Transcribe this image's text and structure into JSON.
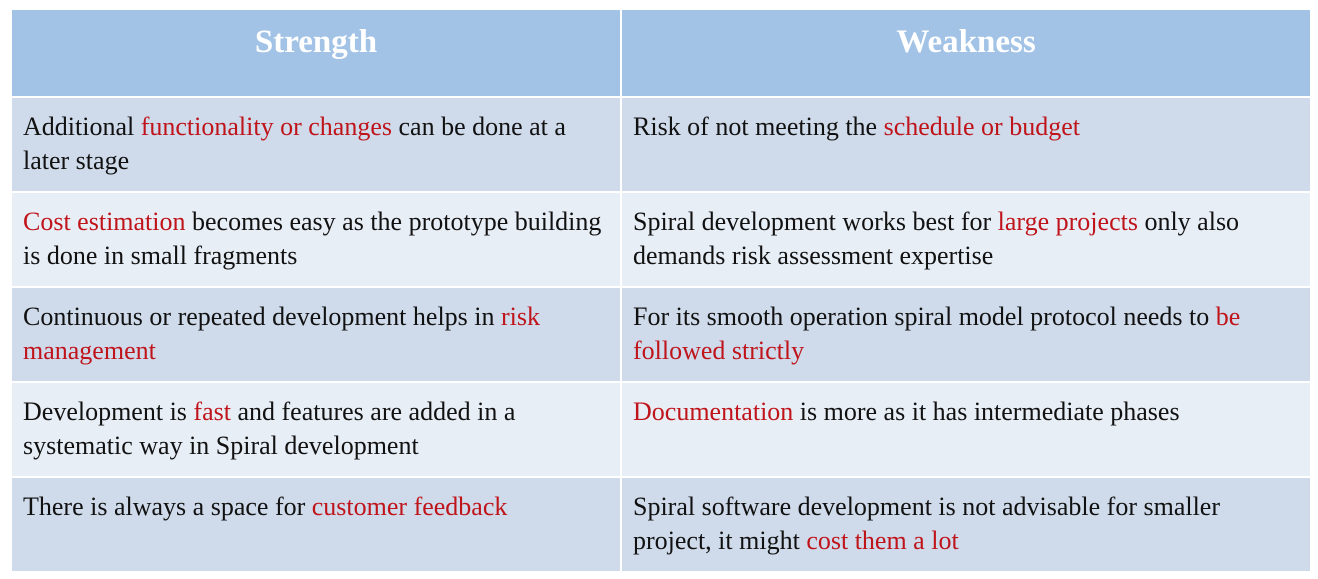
{
  "headers": {
    "strength": "Strength",
    "weakness": "Weakness"
  },
  "rows": [
    {
      "strength": [
        {
          "text": "Additional ",
          "hl": false
        },
        {
          "text": "functionality or changes",
          "hl": true
        },
        {
          "text": " can be done at a later stage",
          "hl": false
        }
      ],
      "weakness": [
        {
          "text": "Risk of not meeting the ",
          "hl": false
        },
        {
          "text": "schedule or budget",
          "hl": true
        }
      ]
    },
    {
      "strength": [
        {
          "text": "Cost estimation",
          "hl": true
        },
        {
          "text": " becomes easy as the prototype building is done in small fragments",
          "hl": false
        }
      ],
      "weakness": [
        {
          "text": "Spiral development works best for ",
          "hl": false
        },
        {
          "text": "large projects",
          "hl": true
        },
        {
          "text": " only also demands risk assessment expertise",
          "hl": false
        }
      ]
    },
    {
      "strength": [
        {
          "text": "Continuous or repeated development helps in ",
          "hl": false
        },
        {
          "text": "risk management",
          "hl": true
        }
      ],
      "weakness": [
        {
          "text": "For its smooth operation spiral model protocol needs to ",
          "hl": false
        },
        {
          "text": "be followed strictly",
          "hl": true
        }
      ]
    },
    {
      "strength": [
        {
          "text": "Development is ",
          "hl": false
        },
        {
          "text": "fast",
          "hl": true
        },
        {
          "text": " and features are added in a systematic way in Spiral development",
          "hl": false
        }
      ],
      "weakness": [
        {
          "text": "Documentation",
          "hl": true
        },
        {
          "text": " is more as it has intermediate phases",
          "hl": false
        }
      ]
    },
    {
      "strength": [
        {
          "text": "There is always a space for ",
          "hl": false
        },
        {
          "text": "customer feedback",
          "hl": true
        }
      ],
      "weakness": [
        {
          "text": "Spiral software development is not advisable for smaller project, it might ",
          "hl": false
        },
        {
          "text": "cost them a lot",
          "hl": true
        }
      ]
    }
  ],
  "colors": {
    "header_bg": "#a2c3e6",
    "row_dark_bg": "#cfdbea",
    "row_light_bg": "#e8eef6",
    "highlight_text": "#c0141b"
  }
}
